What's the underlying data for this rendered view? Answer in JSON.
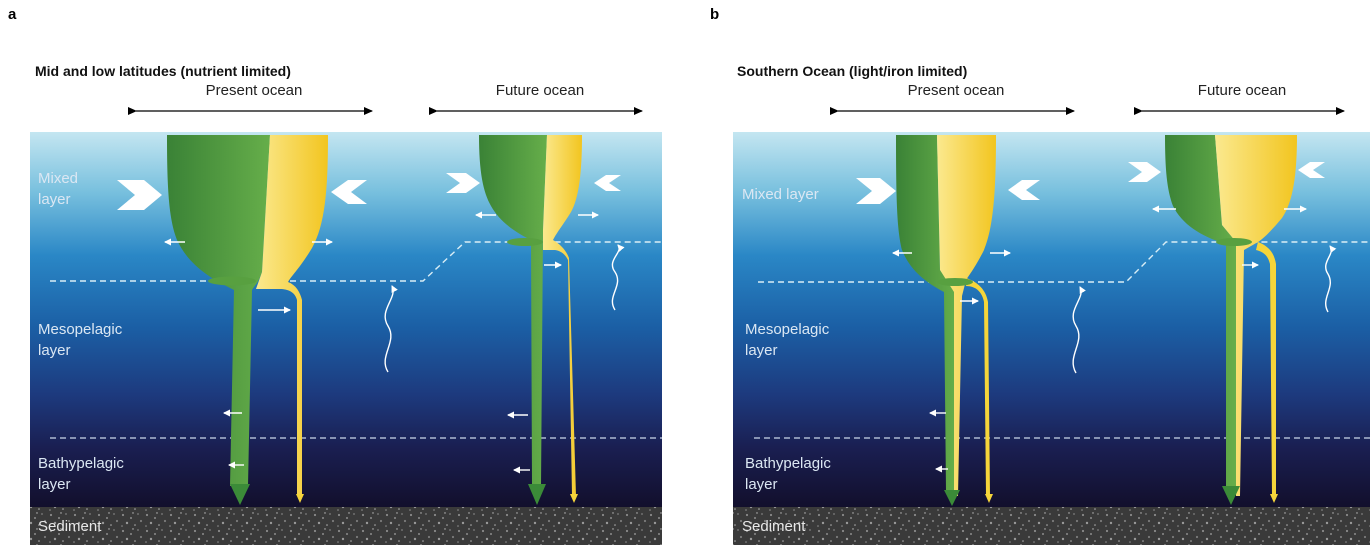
{
  "panels": [
    {
      "letter": "a",
      "title": "Mid and low latitudes (nutrient limited)",
      "present_label": "Present ocean",
      "future_label": "Future ocean",
      "layers": {
        "mixed": [
          "Mixed",
          "layer"
        ],
        "meso": [
          "Mesopelagic",
          "layer"
        ],
        "bathy": [
          "Bathypelagic",
          "layer"
        ],
        "sediment": "Sediment"
      }
    },
    {
      "letter": "b",
      "title": "Southern Ocean (light/iron limited)",
      "present_label": "Present ocean",
      "future_label": "Future ocean",
      "layers": {
        "mixed": [
          "Mixed layer"
        ],
        "meso": [
          "Mesopelagic",
          "layer"
        ],
        "bathy": [
          "Bathypelagic",
          "layer"
        ],
        "sediment": "Sediment"
      }
    }
  ],
  "colors": {
    "green_dark": "#3d8a3a",
    "green_light": "#6cb54d",
    "yellow": "#f6d53a",
    "yellow_light": "#fbe98a",
    "ocean_top": "#bfe3ef",
    "ocean_mid": "#1e5fa6",
    "ocean_deep": "#16163a",
    "sediment": "#3d3d3d"
  }
}
